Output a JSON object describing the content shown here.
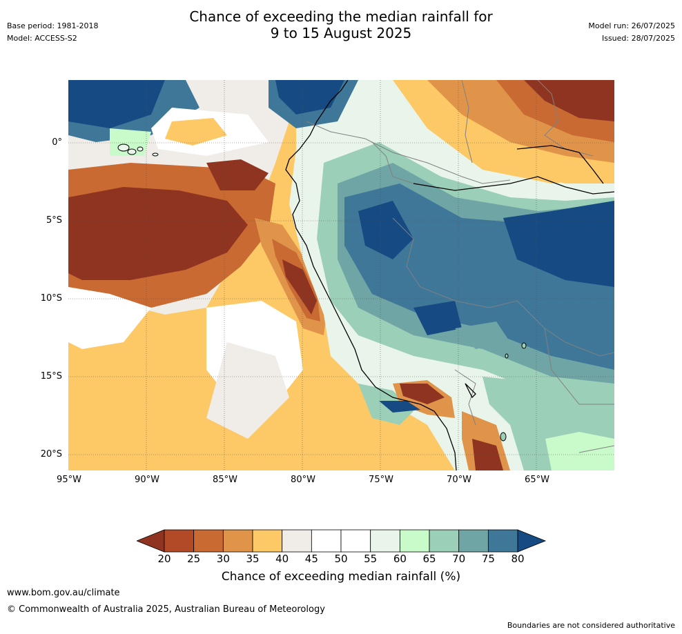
{
  "header": {
    "title_line1": "Chance of exceeding the median rainfall for",
    "title_line2": "9 to 15 August 2025",
    "base_period": "Base period: 1981-2018",
    "model": "Model: ACCESS-S2",
    "model_run": "Model run: 26/07/2025",
    "issued": "Issued: 28/07/2025"
  },
  "map": {
    "lat_labels": [
      "0°",
      "5°S",
      "10°S",
      "15°S",
      "20°S"
    ],
    "lon_labels": [
      "95°W",
      "90°W",
      "85°W",
      "80°W",
      "75°W",
      "70°W",
      "65°W"
    ],
    "background_color": "#f0ece8"
  },
  "colorbar": {
    "title": "Chance of exceeding median rainfall (%)",
    "ticks": [
      "20",
      "25",
      "30",
      "35",
      "40",
      "45",
      "50",
      "55",
      "60",
      "65",
      "70",
      "75",
      "80"
    ],
    "colors": [
      "#8e3420",
      "#b24a28",
      "#c96a33",
      "#e0944a",
      "#fcc966",
      "#f0ece8",
      "#ffffff",
      "#ffffff",
      "#e9f5ea",
      "#c9fac9",
      "#9ccfb8",
      "#6fa5a4",
      "#3f7799",
      "#164a82"
    ]
  },
  "footer": {
    "url": "www.bom.gov.au/climate",
    "copyright": "© Commonwealth of Australia 2025, Australian Bureau of Meteorology",
    "note": "Boundaries are not considered authoritative"
  }
}
